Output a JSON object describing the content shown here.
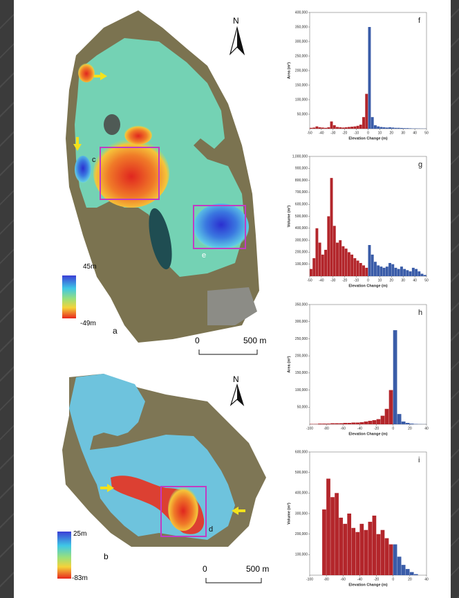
{
  "maps": [
    {
      "panel_label": "a",
      "colorbar": {
        "max": "45m",
        "min": "-49m"
      },
      "boxes": [
        "c",
        "e"
      ],
      "scale": {
        "zero": "0",
        "length": "500 m"
      },
      "north": "N"
    },
    {
      "panel_label": "b",
      "colorbar": {
        "max": "25m",
        "min": "-83m"
      },
      "boxes": [
        "d"
      ],
      "scale": {
        "zero": "0",
        "length": "500 m"
      },
      "north": "N"
    }
  ],
  "chart_data": [
    {
      "type": "histogram",
      "panel_label": "f",
      "ylabel": "Area (m²)",
      "xlabel": "Elevation Change (m)",
      "xlim": [
        -50,
        50
      ],
      "ylim": [
        0,
        400000
      ],
      "xticks": [
        -50,
        -40,
        -30,
        -20,
        -10,
        0,
        10,
        20,
        30,
        40,
        50
      ],
      "yticks": [
        {
          "value": 50000,
          "label": "50,000"
        },
        {
          "value": 100000,
          "label": "100,000"
        },
        {
          "value": 150000,
          "label": "150,000"
        },
        {
          "value": 200000,
          "label": "200,000"
        },
        {
          "value": 250000,
          "label": "250,000"
        },
        {
          "value": 300000,
          "label": "300,000"
        },
        {
          "value": 350000,
          "label": "350,000"
        },
        {
          "value": 400000,
          "label": "400,000"
        }
      ],
      "series": [
        {
          "color": "#b3262b",
          "bins": [
            -50,
            -47.5,
            -45,
            -42.5,
            -40,
            -37.5,
            -35,
            -32.5,
            -30,
            -27.5,
            -25,
            -22.5,
            -20,
            -17.5,
            -15,
            -12.5,
            -10,
            -7.5,
            -5,
            -2.5,
            0
          ],
          "values": [
            3000,
            4000,
            8000,
            5000,
            4000,
            3000,
            5000,
            25000,
            12000,
            6000,
            5000,
            4000,
            5000,
            6000,
            7000,
            8000,
            10000,
            14000,
            40000,
            120000
          ]
        },
        {
          "color": "#3a5ca8",
          "bins": [
            0,
            2.5,
            5,
            7.5,
            10,
            12.5,
            15,
            17.5,
            20,
            22.5,
            25,
            27.5,
            30,
            32.5,
            35,
            37.5,
            40,
            42.5,
            45,
            47.5,
            50
          ],
          "values": [
            350000,
            40000,
            12000,
            8000,
            6000,
            5000,
            4000,
            5000,
            4000,
            3000,
            3000,
            2500,
            2000,
            2000,
            1500,
            1000,
            1000,
            800,
            600,
            500
          ]
        }
      ]
    },
    {
      "type": "histogram",
      "panel_label": "g",
      "ylabel": "Volume (m³)",
      "xlabel": "Elevation Change (m)",
      "xlim": [
        -50,
        50
      ],
      "ylim": [
        0,
        1000000
      ],
      "xticks": [
        -50,
        -40,
        -30,
        -20,
        -10,
        0,
        10,
        20,
        30,
        40,
        50
      ],
      "yticks": [
        {
          "value": 100000,
          "label": "100,000"
        },
        {
          "value": 200000,
          "label": "200,000"
        },
        {
          "value": 300000,
          "label": "300,000"
        },
        {
          "value": 400000,
          "label": "400,000"
        },
        {
          "value": 500000,
          "label": "500,000"
        },
        {
          "value": 600000,
          "label": "600,000"
        },
        {
          "value": 700000,
          "label": "700,000"
        },
        {
          "value": 800000,
          "label": "800,000"
        },
        {
          "value": 900000,
          "label": "900,000"
        },
        {
          "value": 1000000,
          "label": "1,000,000"
        }
      ],
      "series": [
        {
          "color": "#b3262b",
          "bins": [
            -50,
            -47.5,
            -45,
            -42.5,
            -40,
            -37.5,
            -35,
            -32.5,
            -30,
            -27.5,
            -25,
            -22.5,
            -20,
            -17.5,
            -15,
            -12.5,
            -10,
            -7.5,
            -5,
            -2.5,
            0
          ],
          "values": [
            60000,
            150000,
            400000,
            280000,
            180000,
            220000,
            500000,
            820000,
            420000,
            280000,
            300000,
            250000,
            230000,
            200000,
            180000,
            150000,
            130000,
            110000,
            90000,
            70000
          ]
        },
        {
          "color": "#3a5ca8",
          "bins": [
            0,
            2.5,
            5,
            7.5,
            10,
            12.5,
            15,
            17.5,
            20,
            22.5,
            25,
            27.5,
            30,
            32.5,
            35,
            37.5,
            40,
            42.5,
            45,
            47.5,
            50
          ],
          "values": [
            260000,
            180000,
            120000,
            90000,
            80000,
            70000,
            80000,
            110000,
            100000,
            70000,
            60000,
            80000,
            60000,
            50000,
            40000,
            70000,
            60000,
            40000,
            20000,
            10000
          ]
        }
      ]
    },
    {
      "type": "histogram",
      "panel_label": "h",
      "ylabel": "Area (m²)",
      "xlabel": "Elevation Change (m)",
      "xlim": [
        -100,
        40
      ],
      "ylim": [
        0,
        350000
      ],
      "xticks": [
        -100,
        -80,
        -60,
        -40,
        -20,
        0,
        20,
        40
      ],
      "yticks": [
        {
          "value": 50000,
          "label": "50,000"
        },
        {
          "value": 100000,
          "label": "100,000"
        },
        {
          "value": 150000,
          "label": "150,000"
        },
        {
          "value": 200000,
          "label": "200,000"
        },
        {
          "value": 250000,
          "label": "250,000"
        },
        {
          "value": 300000,
          "label": "300,000"
        },
        {
          "value": 350000,
          "label": "350,000"
        }
      ],
      "series": [
        {
          "color": "#b3262b",
          "bins": [
            -100,
            -95,
            -90,
            -85,
            -80,
            -75,
            -70,
            -65,
            -60,
            -55,
            -50,
            -45,
            -40,
            -35,
            -30,
            -25,
            -20,
            -15,
            -10,
            -5,
            0
          ],
          "values": [
            1000,
            1000,
            2000,
            2000,
            2000,
            3000,
            3000,
            3000,
            4000,
            4000,
            5000,
            5000,
            6000,
            8000,
            10000,
            12000,
            15000,
            25000,
            45000,
            100000
          ]
        },
        {
          "color": "#3a5ca8",
          "bins": [
            0,
            5,
            10,
            15,
            20,
            25,
            30,
            35,
            40
          ],
          "values": [
            275000,
            30000,
            8000,
            4000,
            2000,
            1000,
            500,
            300
          ]
        }
      ]
    },
    {
      "type": "histogram",
      "panel_label": "i",
      "ylabel": "Volume (m³)",
      "xlabel": "Elevation Change (m)",
      "xlim": [
        -100,
        40
      ],
      "ylim": [
        0,
        600000
      ],
      "xticks": [
        -100,
        -80,
        -60,
        -40,
        -20,
        0,
        20,
        40
      ],
      "yticks": [
        {
          "value": 100000,
          "label": "100,000"
        },
        {
          "value": 200000,
          "label": "200,000"
        },
        {
          "value": 300000,
          "label": "300,000"
        },
        {
          "value": 400000,
          "label": "400,000"
        },
        {
          "value": 500000,
          "label": "500,000"
        },
        {
          "value": 600000,
          "label": "600,000"
        }
      ],
      "series": [
        {
          "color": "#b3262b",
          "bins": [
            -100,
            -95,
            -90,
            -85,
            -80,
            -75,
            -70,
            -65,
            -60,
            -55,
            -50,
            -45,
            -40,
            -35,
            -30,
            -25,
            -20,
            -15,
            -10,
            -5,
            0
          ],
          "values": [
            0,
            0,
            0,
            320000,
            470000,
            380000,
            400000,
            280000,
            250000,
            300000,
            230000,
            210000,
            250000,
            220000,
            260000,
            290000,
            200000,
            220000,
            180000,
            150000
          ]
        },
        {
          "color": "#3a5ca8",
          "bins": [
            0,
            5,
            10,
            15,
            20,
            25,
            30,
            35,
            40
          ],
          "values": [
            150000,
            90000,
            50000,
            30000,
            15000,
            5000,
            0,
            0
          ]
        }
      ]
    }
  ]
}
